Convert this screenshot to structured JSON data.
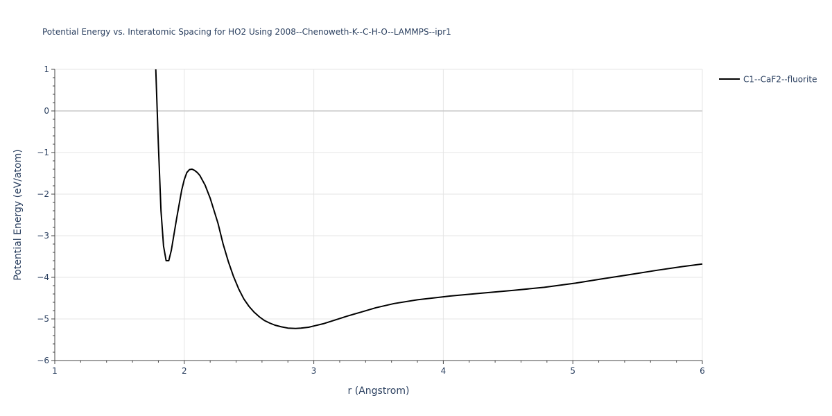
{
  "chart_data": {
    "type": "line",
    "title": "Potential Energy vs. Interatomic Spacing for HO2 Using 2008--Chenoweth-K--C-H-O--LAMMPS--ipr1",
    "xlabel": "r (Angstrom)",
    "ylabel": "Potential Energy (eV/atom)",
    "xlim": [
      1,
      6
    ],
    "ylim": [
      -6,
      1
    ],
    "xticks": [
      1,
      2,
      3,
      4,
      5,
      6
    ],
    "xtick_labels": [
      "1",
      "2",
      "3",
      "4",
      "5",
      "6"
    ],
    "yticks": [
      1,
      0,
      -1,
      -2,
      -3,
      -4,
      -5,
      -6
    ],
    "ytick_labels": [
      "1",
      "0",
      "−1",
      "−2",
      "−3",
      "−4",
      "−5",
      "−6"
    ],
    "grid": true,
    "legend_position": "top-right",
    "series": [
      {
        "name": "C1--CaF2--fluorite",
        "color": "#000000",
        "x": [
          1.78,
          1.8,
          1.82,
          1.84,
          1.86,
          1.88,
          1.9,
          1.94,
          1.98,
          2.0,
          2.02,
          2.04,
          2.06,
          2.08,
          2.1,
          2.12,
          2.16,
          2.2,
          2.26,
          2.3,
          2.34,
          2.38,
          2.42,
          2.46,
          2.5,
          2.54,
          2.58,
          2.62,
          2.66,
          2.7,
          2.75,
          2.8,
          2.86,
          2.9,
          2.96,
          3.0,
          3.08,
          3.16,
          3.26,
          3.36,
          3.48,
          3.62,
          3.8,
          4.05,
          4.3,
          4.55,
          4.78,
          5.02,
          5.22,
          5.45,
          5.65,
          5.85,
          6.0
        ],
        "y": [
          1.0,
          -0.8,
          -2.4,
          -3.25,
          -3.6,
          -3.6,
          -3.35,
          -2.6,
          -1.9,
          -1.65,
          -1.48,
          -1.41,
          -1.4,
          -1.43,
          -1.48,
          -1.55,
          -1.78,
          -2.1,
          -2.7,
          -3.2,
          -3.62,
          -3.98,
          -4.28,
          -4.52,
          -4.7,
          -4.84,
          -4.95,
          -5.04,
          -5.1,
          -5.15,
          -5.19,
          -5.22,
          -5.23,
          -5.22,
          -5.2,
          -5.17,
          -5.11,
          -5.03,
          -4.93,
          -4.84,
          -4.73,
          -4.63,
          -4.54,
          -4.45,
          -4.38,
          -4.31,
          -4.24,
          -4.14,
          -4.04,
          -3.93,
          -3.83,
          -3.74,
          -3.68
        ]
      }
    ]
  }
}
